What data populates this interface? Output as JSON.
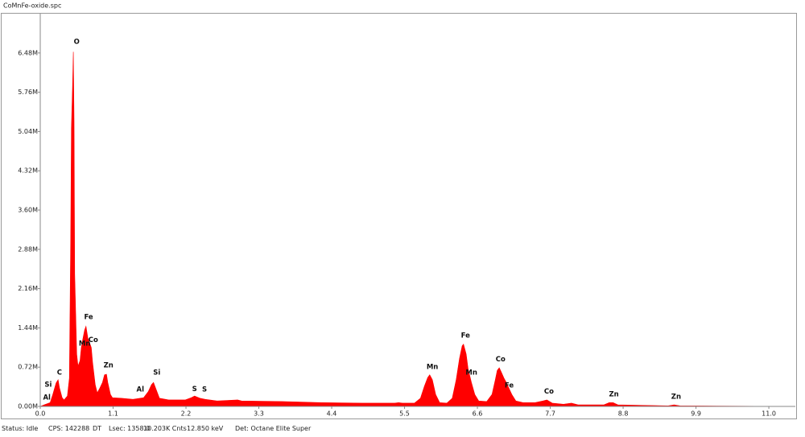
{
  "window": {
    "title": "CoMnFe-oxide.spc"
  },
  "chart_data": {
    "type": "area",
    "color": "#ff0000",
    "x": [
      0.0,
      0.06,
      0.15,
      0.19,
      0.24,
      0.27,
      0.29,
      0.33,
      0.36,
      0.41,
      0.44,
      0.46,
      0.47,
      0.49,
      0.5,
      0.51,
      0.52,
      0.55,
      0.57,
      0.6,
      0.62,
      0.64,
      0.67,
      0.69,
      0.72,
      0.74,
      0.77,
      0.79,
      0.83,
      0.86,
      0.9,
      0.94,
      0.97,
      1.0,
      1.02,
      1.06,
      1.09,
      1.22,
      1.4,
      1.56,
      1.63,
      1.68,
      1.71,
      1.75,
      1.8,
      1.94,
      2.19,
      2.28,
      2.33,
      2.41,
      2.49,
      2.67,
      2.98,
      3.04,
      3.65,
      4.25,
      4.86,
      5.35,
      5.41,
      5.47,
      5.65,
      5.74,
      5.8,
      5.85,
      5.88,
      5.92,
      5.97,
      6.03,
      6.14,
      6.22,
      6.28,
      6.33,
      6.37,
      6.39,
      6.43,
      6.46,
      6.51,
      6.56,
      6.62,
      6.74,
      6.82,
      6.87,
      6.9,
      6.93,
      6.96,
      7.0,
      7.04,
      7.07,
      7.12,
      7.18,
      7.29,
      7.47,
      7.59,
      7.65,
      7.73,
      7.9,
      8.02,
      8.12,
      8.51,
      8.59,
      8.65,
      8.72,
      9.48,
      9.57,
      9.66,
      11.4
    ],
    "values": [
      0.0,
      0.03,
      0.07,
      0.22,
      0.43,
      0.49,
      0.34,
      0.16,
      0.12,
      0.19,
      0.52,
      3.02,
      5.09,
      5.97,
      6.5,
      5.24,
      2.43,
      0.96,
      0.74,
      0.84,
      1.08,
      1.22,
      1.4,
      1.47,
      1.25,
      1.18,
      1.08,
      0.81,
      0.4,
      0.25,
      0.34,
      0.44,
      0.58,
      0.59,
      0.44,
      0.22,
      0.16,
      0.15,
      0.13,
      0.16,
      0.27,
      0.4,
      0.44,
      0.31,
      0.15,
      0.12,
      0.12,
      0.16,
      0.19,
      0.15,
      0.13,
      0.1,
      0.12,
      0.1,
      0.09,
      0.07,
      0.06,
      0.06,
      0.07,
      0.06,
      0.06,
      0.15,
      0.37,
      0.53,
      0.58,
      0.49,
      0.22,
      0.07,
      0.06,
      0.15,
      0.49,
      0.88,
      1.11,
      1.14,
      0.96,
      0.69,
      0.44,
      0.22,
      0.1,
      0.09,
      0.22,
      0.49,
      0.66,
      0.71,
      0.63,
      0.52,
      0.43,
      0.35,
      0.22,
      0.1,
      0.07,
      0.07,
      0.1,
      0.12,
      0.06,
      0.04,
      0.06,
      0.03,
      0.03,
      0.07,
      0.07,
      0.03,
      0.01,
      0.03,
      0.01,
      0.0
    ],
    "xlim": [
      0,
      11.4
    ],
    "ylim": [
      0,
      7.2
    ],
    "xticks": [
      {
        "value": 0,
        "label": "0.0"
      },
      1.1,
      2.2,
      3.3,
      4.4,
      5.5,
      6.6,
      7.7,
      8.8,
      9.9,
      {
        "value": 11,
        "label": "11.0"
      }
    ],
    "yticks": [
      {
        "value": 0,
        "label": "0.00M"
      },
      {
        "value": 0.72,
        "label": "0.72M"
      },
      {
        "value": 1.44,
        "label": "1.44M"
      },
      {
        "value": 2.16,
        "label": "2.16M"
      },
      {
        "value": 2.88,
        "label": "2.88M"
      },
      {
        "value": 3.6,
        "label": "3.60M"
      },
      {
        "value": 4.32,
        "label": "4.32M"
      },
      {
        "value": 5.04,
        "label": "5.04M"
      },
      {
        "value": 5.76,
        "label": "5.76M"
      },
      {
        "value": 6.48,
        "label": "6.48M"
      }
    ],
    "peak_labels": [
      {
        "text": "Al",
        "x": 0.1,
        "y": 0.16
      },
      {
        "text": "Si",
        "x": 0.12,
        "y": 0.4
      },
      {
        "text": "C",
        "x": 0.29,
        "y": 0.62
      },
      {
        "text": "O",
        "x": 0.55,
        "y": 6.68
      },
      {
        "text": "Fe",
        "x": 0.73,
        "y": 1.64
      },
      {
        "text": "Mn",
        "x": 0.67,
        "y": 1.15
      },
      {
        "text": "Co",
        "x": 0.8,
        "y": 1.22
      },
      {
        "text": "Zn",
        "x": 1.03,
        "y": 0.75
      },
      {
        "text": "Al",
        "x": 1.51,
        "y": 0.31
      },
      {
        "text": "Si",
        "x": 1.76,
        "y": 0.62
      },
      {
        "text": "S",
        "x": 2.33,
        "y": 0.32
      },
      {
        "text": "S",
        "x": 2.48,
        "y": 0.31
      },
      {
        "text": "Mn",
        "x": 5.92,
        "y": 0.72
      },
      {
        "text": "Fe",
        "x": 6.42,
        "y": 1.3
      },
      {
        "text": "Mn",
        "x": 6.51,
        "y": 0.62
      },
      {
        "text": "Co",
        "x": 6.95,
        "y": 0.86
      },
      {
        "text": "Fe",
        "x": 7.08,
        "y": 0.38
      },
      {
        "text": "Co",
        "x": 7.68,
        "y": 0.27
      },
      {
        "text": "Zn",
        "x": 8.66,
        "y": 0.22
      },
      {
        "text": "Zn",
        "x": 9.6,
        "y": 0.18
      }
    ]
  },
  "status_bar": [
    "Status: Idle",
    "CPS: 142288",
    "DT",
    "Lsec: 1358.0",
    "10.203K Cnts",
    "12.850 keV",
    "Det: Octane Elite Super"
  ]
}
